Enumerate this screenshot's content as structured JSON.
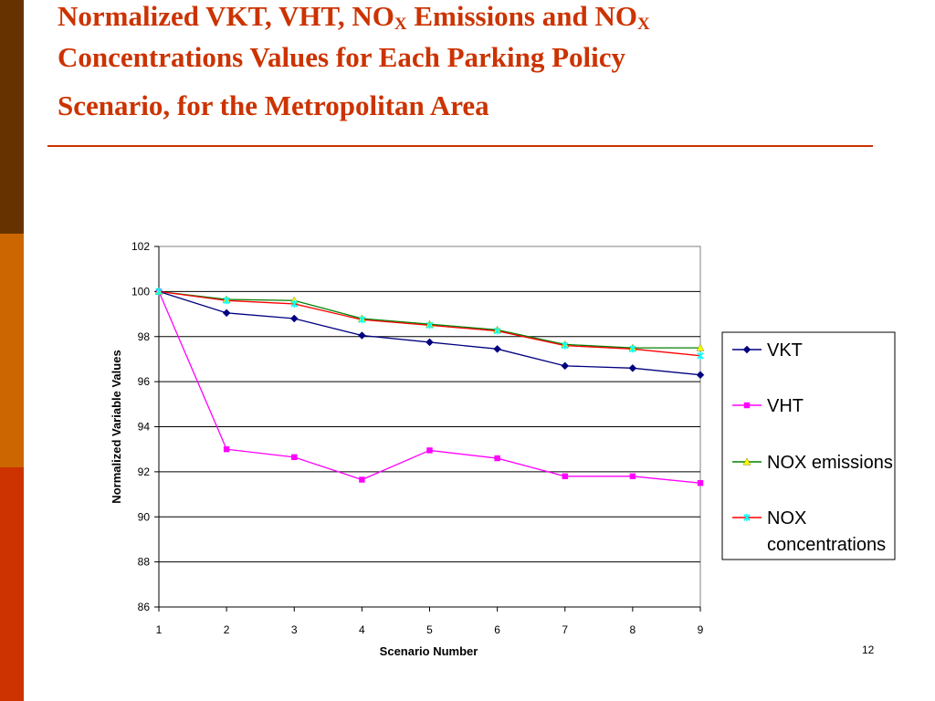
{
  "slide": {
    "title_part1": "Normalized VKT, VHT,  NO",
    "title_sub1": "X",
    "title_part2": " Emissions and NO",
    "title_sub2": "X",
    "title_line2": "Concentrations Values for Each Parking Policy",
    "title_line3": "Scenario, for the Metropolitan Area",
    "page_number": "12",
    "accent_color": "#cc3300",
    "sidebar_colors": [
      "#663300",
      "#cc6600",
      "#cc3300"
    ]
  },
  "chart_data": {
    "type": "line",
    "title": "",
    "xlabel": "Scenario Number",
    "ylabel": "Normalized Variable Values",
    "x": [
      1,
      2,
      3,
      4,
      5,
      6,
      7,
      8,
      9
    ],
    "ylim": [
      86,
      102
    ],
    "yticks": [
      86,
      88,
      90,
      92,
      94,
      96,
      98,
      100,
      102
    ],
    "grid": true,
    "legend": "right",
    "series": [
      {
        "name": "VKT",
        "color": "#000080",
        "marker": "diamond",
        "values": [
          100,
          99.05,
          98.8,
          98.05,
          97.75,
          97.45,
          96.7,
          96.6,
          96.3
        ]
      },
      {
        "name": "VHT",
        "color": "#ff00ff",
        "marker": "square",
        "values": [
          100,
          93.0,
          92.65,
          91.65,
          92.95,
          92.6,
          91.8,
          91.8,
          91.5
        ]
      },
      {
        "name": "NOX emissions",
        "color": "#008000",
        "marker": "triangle",
        "marker_color": "#ffff00",
        "values": [
          100,
          99.65,
          99.6,
          98.8,
          98.55,
          98.3,
          97.65,
          97.5,
          97.5
        ]
      },
      {
        "name": "NOX concentrations",
        "color": "#ff0000",
        "marker": "star",
        "marker_color": "#00ffff",
        "values": [
          100,
          99.6,
          99.45,
          98.75,
          98.5,
          98.25,
          97.6,
          97.45,
          97.15
        ]
      }
    ]
  }
}
